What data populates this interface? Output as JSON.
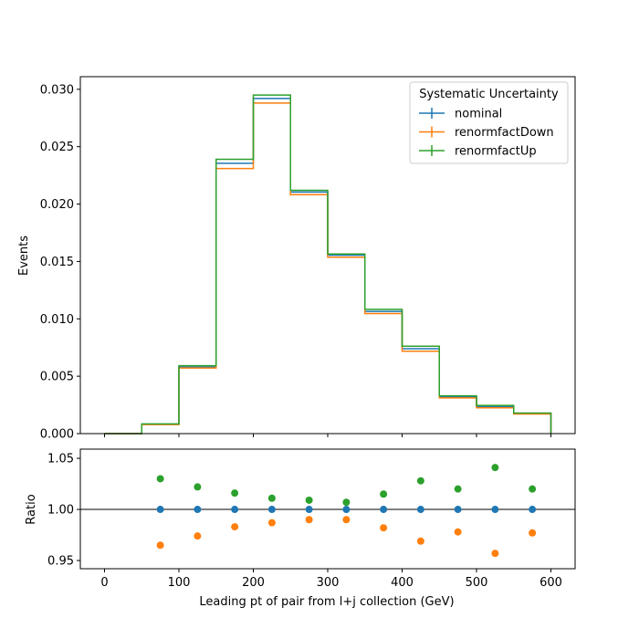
{
  "colors": {
    "nominal": "#1f77b4",
    "renormfactDown": "#ff7f0e",
    "renormfactUp": "#2ca02c"
  },
  "chart_data": [
    {
      "type": "step-histogram",
      "bin_edges": [
        0,
        50,
        100,
        150,
        200,
        250,
        300,
        350,
        400,
        450,
        500,
        550,
        600
      ],
      "series": [
        {
          "name": "nominal",
          "values": [
            0.0,
            0.00082,
            0.0058,
            0.02355,
            0.0292,
            0.02105,
            0.01555,
            0.01065,
            0.0074,
            0.0032,
            0.00235,
            0.00175
          ]
        },
        {
          "name": "renormfactDown",
          "values": [
            0.0,
            0.00079,
            0.00572,
            0.0231,
            0.0288,
            0.02082,
            0.01537,
            0.01046,
            0.00718,
            0.00311,
            0.00225,
            0.00171
          ]
        },
        {
          "name": "renormfactUp",
          "values": [
            0.0,
            0.00085,
            0.00592,
            0.0239,
            0.0295,
            0.0212,
            0.01565,
            0.01083,
            0.00762,
            0.00329,
            0.00246,
            0.00179
          ]
        }
      ],
      "xlim": [
        -32.5,
        632.5
      ],
      "ylim": [
        0,
        0.0311
      ],
      "yticks": [
        "0.000",
        "0.005",
        "0.010",
        "0.015",
        "0.020",
        "0.025",
        "0.030"
      ],
      "ytick_values": [
        0,
        0.005,
        0.01,
        0.015,
        0.02,
        0.025,
        0.03
      ],
      "ylabel": "Events",
      "legend": {
        "title": "Systematic Uncertainty",
        "placement": "top-right"
      }
    },
    {
      "type": "scatter",
      "x": [
        75,
        125,
        175,
        225,
        275,
        325,
        375,
        425,
        475,
        525,
        575
      ],
      "series": [
        {
          "name": "nominal",
          "values": [
            1.0,
            1.0,
            1.0,
            1.0,
            1.0,
            1.0,
            1.0,
            1.0,
            1.0,
            1.0,
            1.0
          ]
        },
        {
          "name": "renormfactDown",
          "values": [
            0.965,
            0.974,
            0.983,
            0.987,
            0.99,
            0.99,
            0.982,
            0.969,
            0.978,
            0.957,
            0.977
          ]
        },
        {
          "name": "renormfactUp",
          "values": [
            1.03,
            1.022,
            1.016,
            1.011,
            1.009,
            1.007,
            1.015,
            1.028,
            1.02,
            1.041,
            1.02
          ]
        }
      ],
      "xlim": [
        -32.5,
        632.5
      ],
      "ylim": [
        0.942,
        1.059
      ],
      "yticks": [
        "0.95",
        "1.00",
        "1.05"
      ],
      "ytick_values": [
        0.95,
        1.0,
        1.05
      ],
      "xticks": [
        "0",
        "100",
        "200",
        "300",
        "400",
        "500",
        "600"
      ],
      "xtick_values": [
        0,
        100,
        200,
        300,
        400,
        500,
        600
      ],
      "reference_line": 1.0,
      "ylabel": "Ratio",
      "xlabel": "Leading pt of pair from l+j collection (GeV)"
    }
  ]
}
